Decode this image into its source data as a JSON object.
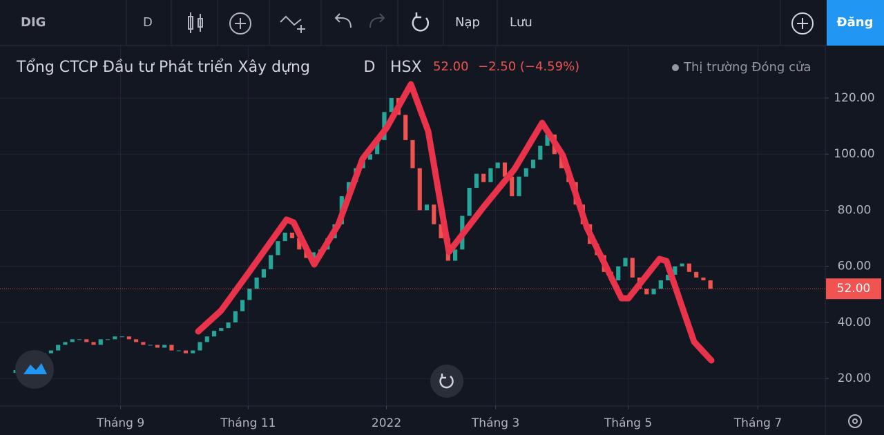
{
  "toolbar": {
    "symbol": "DIG",
    "interval": "D",
    "load": "Nạp",
    "save": "Lưu",
    "signup": "Đăng"
  },
  "legend": {
    "title": "Tổng CTCP Đầu tư Phát triển Xây dựng",
    "interval": "D",
    "exchange": "HSX",
    "price": "52.00",
    "change": "−2.50 (−4.59%)",
    "status": "Thị trường Đóng cửa"
  },
  "chart_data": {
    "type": "candlestick",
    "up_color": "#26a69a",
    "down_color": "#ef5350",
    "last_color": "#f05350",
    "grid": true,
    "values": [
      22,
      23,
      24,
      25,
      27,
      29,
      30,
      32,
      33,
      34,
      34,
      33,
      32,
      34,
      34,
      35,
      35,
      34,
      33,
      32,
      32,
      31,
      32,
      30,
      30,
      29,
      30,
      33,
      35,
      37,
      38,
      40,
      44,
      48,
      52,
      56,
      59,
      64,
      69,
      72,
      70,
      66,
      63,
      65,
      66,
      70,
      75,
      85,
      90,
      95,
      98,
      100,
      105,
      115,
      120,
      114,
      105,
      95,
      80,
      82,
      75,
      70,
      62,
      66,
      78,
      88,
      93,
      90,
      95,
      97,
      92,
      85,
      92,
      95,
      98,
      103,
      107,
      100,
      95,
      90,
      82,
      75,
      68,
      64,
      58,
      55,
      60,
      63,
      56,
      52,
      50,
      52,
      55,
      57,
      60,
      61,
      58,
      56,
      55,
      52
    ],
    "last_label": "52.00",
    "xlim": [
      -1.2,
      115.2
    ],
    "xticks": [
      {
        "value": 15.8,
        "label": "Tháng 9"
      },
      {
        "value": 33.8,
        "label": "Tháng 11"
      },
      {
        "value": 53.3,
        "label": "2022"
      },
      {
        "value": 68.7,
        "label": "Tháng 3"
      },
      {
        "value": 87.4,
        "label": "Tháng 5"
      },
      {
        "value": 105.7,
        "label": "Tháng 7"
      }
    ],
    "ylim": [
      10.2,
      138.7
    ],
    "yticks": [
      {
        "value": 20,
        "label": "20.00"
      },
      {
        "value": 40,
        "label": "40.00"
      },
      {
        "value": 60,
        "label": "60.00"
      },
      {
        "value": 80,
        "label": "80.00"
      },
      {
        "value": 100,
        "label": "100.00"
      },
      {
        "value": 120,
        "label": "120.00"
      }
    ]
  }
}
